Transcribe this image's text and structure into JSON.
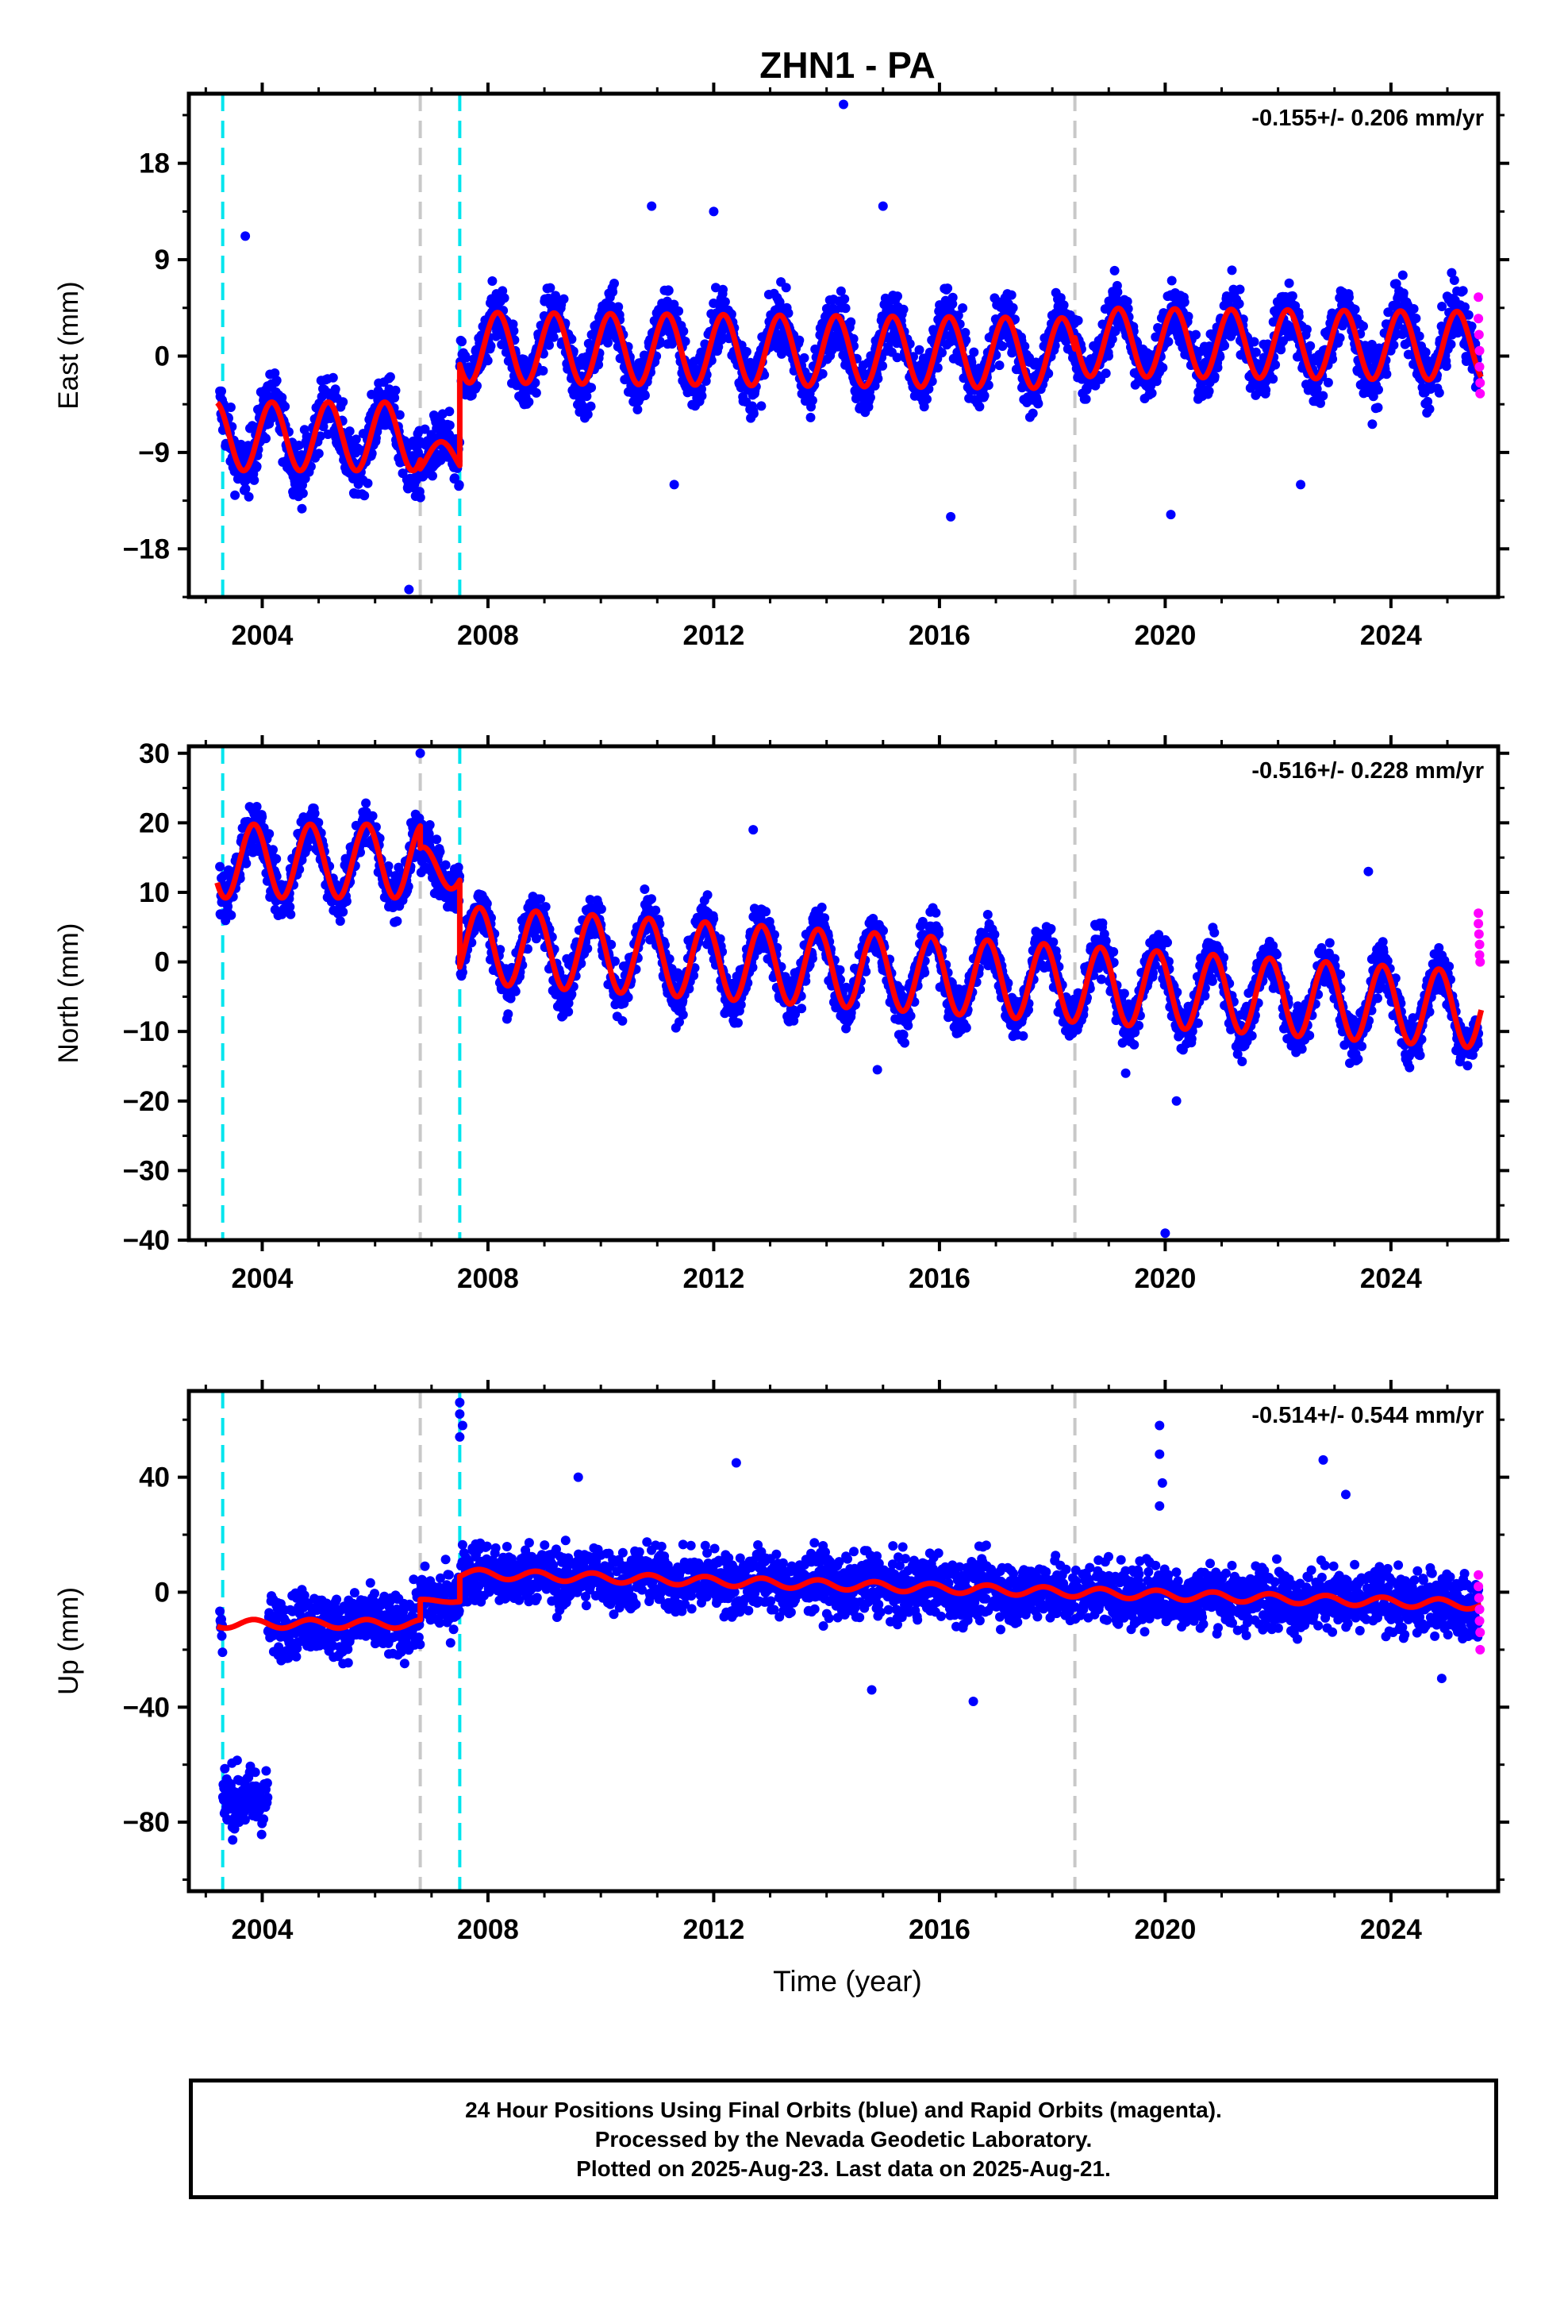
{
  "title": "ZHN1 - PA",
  "x_axis_label": "Time (year)",
  "footer": {
    "line1": "24 Hour Positions Using Final Orbits (blue) and Rapid Orbits (magenta).",
    "line2": "Processed by the Nevada Geodetic Laboratory.",
    "line3": "Plotted on 2025-Aug-23. Last data on 2025-Aug-21."
  },
  "colors": {
    "final_orbits": "#0000ff",
    "rapid_orbits": "#ff00ff",
    "model_fit": "#ff0000",
    "equipment_change_line": "#00e5ee",
    "other_event_line": "#c8c8c8"
  },
  "chart_data": [
    {
      "type": "scatter",
      "panel": "east",
      "ylabel": "East (mm)",
      "rate_label": "-0.155+/- 0.206 mm/yr",
      "xlim": [
        2002.7,
        2025.9
      ],
      "ylim": [
        -22.5,
        24.5
      ],
      "yticks": [
        -18,
        -9,
        0,
        9,
        18
      ],
      "ytick_labels": [
        "−18",
        "−9",
        "0",
        "9",
        "18"
      ],
      "xticks": [
        2004,
        2008,
        2012,
        2016,
        2020,
        2024
      ],
      "xtick_labels": [
        "2004",
        "2008",
        "2012",
        "2016",
        "2020",
        "2024"
      ],
      "cyan_event_lines": [
        2003.3,
        2007.5
      ],
      "gray_event_lines": [
        2006.8,
        2018.4
      ],
      "model_segments": [
        {
          "start": 2003.2,
          "end": 2006.8,
          "offset": -7.5,
          "amplitude": 3.2,
          "trend": 0.0,
          "phase": 0.92
        },
        {
          "start": 2006.8,
          "end": 2007.5,
          "offset": -9.5,
          "amplitude": 1.5,
          "trend": 0.0,
          "phase": 0.92
        },
        {
          "start": 2007.5,
          "end": 2018.4,
          "offset": 0.8,
          "amplitude": 3.3,
          "trend": -0.05,
          "phase": 0.92
        },
        {
          "start": 2018.4,
          "end": 2025.6,
          "offset": 1.3,
          "amplitude": 3.2,
          "trend": -0.05,
          "phase": 0.92
        }
      ],
      "scatter_noise_mm": 2.0,
      "scatter_outliers": [
        [
          2014.3,
          23.5
        ],
        [
          2003.7,
          11.2
        ],
        [
          2006.6,
          -21.8
        ],
        [
          2011.3,
          -12.0
        ],
        [
          2016.2,
          -15.0
        ],
        [
          2020.1,
          -14.8
        ],
        [
          2022.4,
          -12.0
        ],
        [
          2010.9,
          14.0
        ],
        [
          2012.0,
          13.5
        ],
        [
          2015.0,
          14.0
        ]
      ],
      "rapid_orbit_points": [
        [
          2025.55,
          5.5
        ],
        [
          2025.55,
          3.5
        ],
        [
          2025.56,
          2.0
        ],
        [
          2025.57,
          0.5
        ],
        [
          2025.57,
          -1.0
        ],
        [
          2025.58,
          -2.5
        ],
        [
          2025.58,
          -3.5
        ]
      ]
    },
    {
      "type": "scatter",
      "panel": "north",
      "ylabel": "North (mm)",
      "rate_label": "-0.516+/- 0.228 mm/yr",
      "xlim": [
        2002.7,
        2025.9
      ],
      "ylim": [
        -40,
        31
      ],
      "yticks": [
        -40,
        -30,
        -20,
        -10,
        0,
        10,
        20,
        30
      ],
      "ytick_labels": [
        "−40",
        "−30",
        "−20",
        "−10",
        "0",
        "10",
        "20",
        "30"
      ],
      "xticks": [
        2004,
        2008,
        2012,
        2016,
        2020,
        2024
      ],
      "xtick_labels": [
        "2004",
        "2008",
        "2012",
        "2016",
        "2020",
        "2024"
      ],
      "cyan_event_lines": [
        2003.3,
        2007.5
      ],
      "gray_event_lines": [
        2006.8,
        2018.4
      ],
      "model_segments": [
        {
          "start": 2003.2,
          "end": 2006.8,
          "offset": 14.5,
          "amplitude": 5.3,
          "trend": 0.0,
          "phase": 0.6
        },
        {
          "start": 2006.8,
          "end": 2007.5,
          "offset": 13.5,
          "amplitude": 3.0,
          "trend": 0.0,
          "phase": 0.6
        },
        {
          "start": 2007.5,
          "end": 2025.6,
          "offset": 2.5,
          "amplitude": 5.5,
          "trend": -0.52,
          "phase": 0.6
        }
      ],
      "scatter_noise_mm": 2.5,
      "scatter_outliers": [
        [
          2020.0,
          -39.0
        ],
        [
          2006.8,
          30.0
        ],
        [
          2012.7,
          19.0
        ],
        [
          2023.6,
          13.0
        ],
        [
          2014.9,
          -15.5
        ],
        [
          2019.3,
          -16.0
        ],
        [
          2020.2,
          -20.0
        ]
      ],
      "rapid_orbit_points": [
        [
          2025.55,
          7.0
        ],
        [
          2025.55,
          5.5
        ],
        [
          2025.56,
          4.0
        ],
        [
          2025.57,
          2.5
        ],
        [
          2025.57,
          1.0
        ],
        [
          2025.58,
          0.0
        ]
      ]
    },
    {
      "type": "scatter",
      "panel": "up",
      "ylabel": "Up (mm)",
      "rate_label": "-0.514+/- 0.544 mm/yr",
      "xlim": [
        2002.7,
        2025.9
      ],
      "ylim": [
        -104,
        70
      ],
      "yticks": [
        -80,
        -40,
        0,
        40
      ],
      "ytick_labels": [
        "−80",
        "−40",
        "0",
        "40"
      ],
      "xticks": [
        2004,
        2008,
        2012,
        2016,
        2020,
        2024
      ],
      "xtick_labels": [
        "2004",
        "2008",
        "2012",
        "2016",
        "2020",
        "2024"
      ],
      "cyan_event_lines": [
        2003.3,
        2007.5
      ],
      "gray_event_lines": [
        2006.8,
        2018.4
      ],
      "model_segments": [
        {
          "start": 2003.2,
          "end": 2006.8,
          "offset": -11.0,
          "amplitude": 1.5,
          "trend": 0.0,
          "phase": 0.6
        },
        {
          "start": 2006.8,
          "end": 2007.5,
          "offset": -3.0,
          "amplitude": 0.5,
          "trend": 0.0,
          "phase": 0.6
        },
        {
          "start": 2007.5,
          "end": 2025.6,
          "offset": 6.5,
          "amplitude": 1.6,
          "trend": -0.6,
          "phase": 0.6
        }
      ],
      "anomaly_block": {
        "start": 2003.3,
        "end": 2004.1,
        "center": -72,
        "spread": 12
      },
      "scatter_noise_mm": 7.5,
      "scatter_outliers": [
        [
          2007.5,
          66.0
        ],
        [
          2007.5,
          62.0
        ],
        [
          2007.55,
          58.0
        ],
        [
          2007.5,
          54.0
        ],
        [
          2019.9,
          58.0
        ],
        [
          2019.9,
          48.0
        ],
        [
          2019.95,
          38.0
        ],
        [
          2019.9,
          30.0
        ],
        [
          2022.8,
          46.0
        ],
        [
          2012.4,
          45.0
        ],
        [
          2016.6,
          -38.0
        ],
        [
          2014.8,
          -34.0
        ],
        [
          2024.9,
          -30.0
        ],
        [
          2009.6,
          40.0
        ],
        [
          2023.2,
          34.0
        ]
      ],
      "rapid_orbit_points": [
        [
          2025.55,
          6.0
        ],
        [
          2025.55,
          2.0
        ],
        [
          2025.56,
          -2.0
        ],
        [
          2025.57,
          -6.0
        ],
        [
          2025.57,
          -10.0
        ],
        [
          2025.58,
          -14.0
        ],
        [
          2025.58,
          -20.0
        ]
      ]
    }
  ]
}
